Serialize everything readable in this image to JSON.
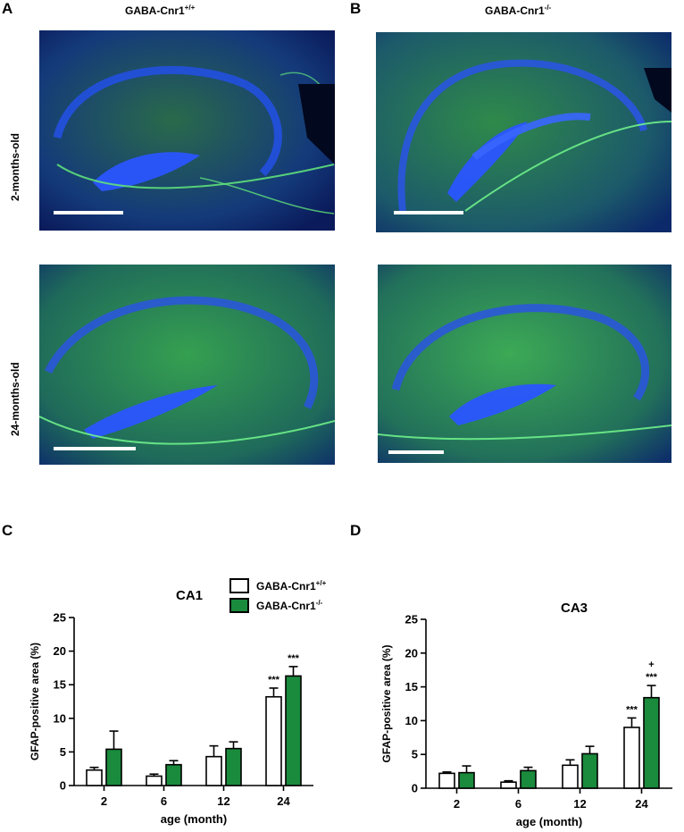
{
  "panels": {
    "A": "A",
    "B": "B",
    "C": "C",
    "D": "D"
  },
  "column_headers": {
    "left": {
      "text": "GABA-Cnr1",
      "sup": "+/+"
    },
    "right": {
      "text": "GABA-Cnr1",
      "sup": "-/-"
    }
  },
  "row_headers": {
    "top": "2-months-old",
    "bottom": "24-months-old"
  },
  "colors": {
    "wt_fill": "#ffffff",
    "ko_fill": "#1a8a3c",
    "axis": "#000000",
    "tissue_blue": "#1030a0",
    "gfap_green": "#39c24a"
  },
  "legend": {
    "entries": [
      {
        "text": "GABA-Cnr1",
        "sup": "+/+"
      },
      {
        "text": "GABA-Cnr1",
        "sup": "-/-"
      }
    ]
  },
  "chart_data": [
    {
      "type": "bar",
      "title": "CA1",
      "xlabel": "age (month)",
      "ylabel": "GFAP-positive area (%)",
      "ylim": [
        0,
        25
      ],
      "yticks": [
        "0",
        "5",
        "10",
        "15",
        "20",
        "25"
      ],
      "categories": [
        "2",
        "6",
        "12",
        "24"
      ],
      "series": [
        {
          "name": "GABA-Cnr1+/+",
          "values": [
            2.3,
            1.4,
            4.3,
            13.2
          ],
          "errors": [
            0.4,
            0.3,
            1.6,
            1.3
          ]
        },
        {
          "name": "GABA-Cnr1-/-",
          "values": [
            5.4,
            3.1,
            5.5,
            16.3
          ],
          "errors": [
            2.7,
            0.6,
            1.0,
            1.4
          ]
        }
      ],
      "annotations": [
        {
          "category": "24",
          "series": 0,
          "text": "***"
        },
        {
          "category": "24",
          "series": 1,
          "text": "***"
        }
      ]
    },
    {
      "type": "bar",
      "title": "CA3",
      "xlabel": "age (month)",
      "ylabel": "GFAP-positive area (%)",
      "ylim": [
        0,
        25
      ],
      "yticks": [
        "0",
        "5",
        "10",
        "15",
        "20",
        "25"
      ],
      "categories": [
        "2",
        "6",
        "12",
        "24"
      ],
      "series": [
        {
          "name": "GABA-Cnr1+/+",
          "values": [
            2.2,
            0.9,
            3.4,
            9.0
          ],
          "errors": [
            0.2,
            0.2,
            0.8,
            1.4
          ]
        },
        {
          "name": "GABA-Cnr1-/-",
          "values": [
            2.3,
            2.6,
            5.1,
            13.4
          ],
          "errors": [
            1.0,
            0.5,
            1.1,
            1.8
          ]
        }
      ],
      "annotations": [
        {
          "category": "24",
          "series": 0,
          "text": "***"
        },
        {
          "category": "24",
          "series": 1,
          "text": "***"
        },
        {
          "category": "24",
          "series": 1,
          "text": "+"
        }
      ]
    }
  ]
}
